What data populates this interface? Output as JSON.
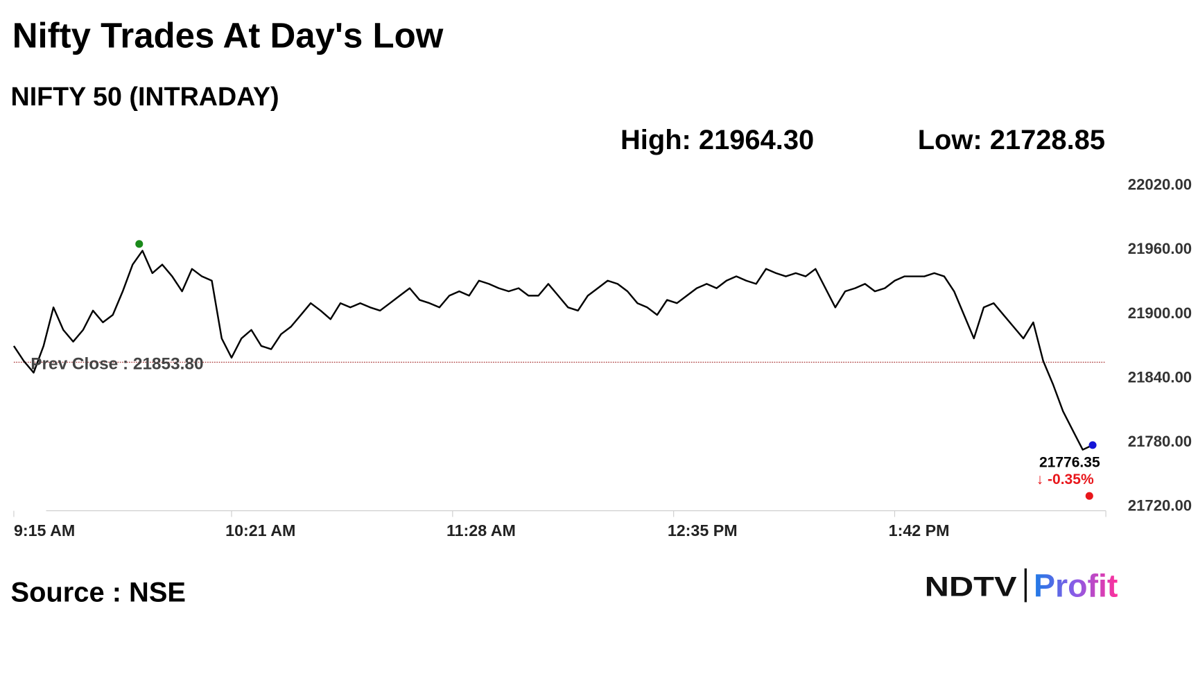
{
  "chart_data": {
    "type": "line",
    "title": "Nifty Trades At Day's Low",
    "subtitle": "NIFTY 50 (INTRADAY)",
    "stats": [
      {
        "label": "High:",
        "value": 21964.3,
        "value_label": "21964.30",
        "time": "9:53 AM",
        "color": "#1a8a1a"
      },
      {
        "label": "Low:",
        "value": 21728.85,
        "value_label": "21728.85",
        "time": "2:41 PM",
        "color": "#e8161b"
      }
    ],
    "prev_close": {
      "label": "Prev Close :",
      "value": 21853.8,
      "value_label": "21853.80",
      "color": "#a83232"
    },
    "last": {
      "value": 21776.35,
      "value_label": "21776.35",
      "change": -0.35,
      "change_label": "↓ -0.35%",
      "color": "#1515d6",
      "change_color": "#e8161b"
    },
    "source": "Source : NSE",
    "logo": {
      "brand": "NDTV",
      "product": "Profit"
    },
    "color": "#000000",
    "x": [
      "9:15 AM",
      "9:18 AM",
      "9:21 AM",
      "9:24 AM",
      "9:27 AM",
      "9:30 AM",
      "9:33 AM",
      "9:36 AM",
      "9:39 AM",
      "9:42 AM",
      "9:45 AM",
      "9:48 AM",
      "9:51 AM",
      "9:54 AM",
      "9:57 AM",
      "10:00 AM",
      "10:03 AM",
      "10:06 AM",
      "10:09 AM",
      "10:12 AM",
      "10:15 AM",
      "10:18 AM",
      "10:21 AM",
      "10:24 AM",
      "10:27 AM",
      "10:30 AM",
      "10:33 AM",
      "10:36 AM",
      "10:39 AM",
      "10:42 AM",
      "10:45 AM",
      "10:48 AM",
      "10:51 AM",
      "10:54 AM",
      "10:57 AM",
      "11:00 AM",
      "11:03 AM",
      "11:06 AM",
      "11:09 AM",
      "11:12 AM",
      "11:15 AM",
      "11:18 AM",
      "11:21 AM",
      "11:24 AM",
      "11:27 AM",
      "11:30 AM",
      "11:33 AM",
      "11:36 AM",
      "11:39 AM",
      "11:42 AM",
      "11:45 AM",
      "11:48 AM",
      "11:51 AM",
      "11:54 AM",
      "11:57 AM",
      "12:00 PM",
      "12:03 PM",
      "12:06 PM",
      "12:09 PM",
      "12:12 PM",
      "12:15 PM",
      "12:18 PM",
      "12:21 PM",
      "12:24 PM",
      "12:27 PM",
      "12:30 PM",
      "12:33 PM",
      "12:36 PM",
      "12:39 PM",
      "12:42 PM",
      "12:45 PM",
      "12:48 PM",
      "12:51 PM",
      "12:54 PM",
      "12:57 PM",
      "1:00 PM",
      "1:03 PM",
      "1:06 PM",
      "1:09 PM",
      "1:12 PM",
      "1:15 PM",
      "1:18 PM",
      "1:21 PM",
      "1:24 PM",
      "1:27 PM",
      "1:30 PM",
      "1:33 PM",
      "1:36 PM",
      "1:39 PM",
      "1:42 PM",
      "1:45 PM",
      "1:48 PM",
      "1:51 PM",
      "1:54 PM",
      "1:57 PM",
      "2:00 PM",
      "2:03 PM",
      "2:06 PM",
      "2:09 PM",
      "2:12 PM",
      "2:15 PM",
      "2:18 PM",
      "2:21 PM",
      "2:24 PM",
      "2:27 PM",
      "2:30 PM",
      "2:33 PM",
      "2:36 PM",
      "2:39 PM",
      "2:42 PM"
    ],
    "values": [
      21869,
      21855,
      21844,
      21869,
      21905,
      21884,
      21873,
      21884,
      21902,
      21891,
      21898,
      21920,
      21945,
      21958,
      21937,
      21945,
      21934,
      21920,
      21941,
      21934,
      21930,
      21876,
      21858,
      21876,
      21884,
      21869,
      21866,
      21880,
      21887,
      21898,
      21909,
      21902,
      21894,
      21909,
      21905,
      21909,
      21905,
      21902,
      21909,
      21916,
      21923,
      21912,
      21909,
      21905,
      21916,
      21920,
      21916,
      21930,
      21927,
      21923,
      21920,
      21923,
      21916,
      21916,
      21927,
      21916,
      21905,
      21902,
      21916,
      21923,
      21930,
      21927,
      21920,
      21909,
      21905,
      21898,
      21912,
      21909,
      21916,
      21923,
      21927,
      21923,
      21930,
      21934,
      21930,
      21927,
      21941,
      21937,
      21934,
      21937,
      21934,
      21941,
      21923,
      21905,
      21920,
      21923,
      21927,
      21920,
      21923,
      21930,
      21934,
      21934,
      21934,
      21937,
      21934,
      21920,
      21898,
      21876,
      21905,
      21909,
      21898,
      21887,
      21876,
      21891,
      21855,
      21833,
      21808,
      21790,
      21772,
      21776.35
    ],
    "xlim": [
      "9:15 AM",
      "2:46 PM"
    ],
    "xticks": [
      "9:15 AM",
      "10:21 AM",
      "11:28 AM",
      "12:35 PM",
      "1:42 PM"
    ],
    "ylim": [
      21720,
      22020
    ],
    "yticks": [
      {
        "value": 21720,
        "label": "21720.00"
      },
      {
        "value": 21780,
        "label": "21780.00"
      },
      {
        "value": 21840,
        "label": "21840.00"
      },
      {
        "value": 21900,
        "label": "21900.00"
      },
      {
        "value": 21960,
        "label": "21960.00"
      },
      {
        "value": 22020,
        "label": "22020.00"
      }
    ]
  }
}
